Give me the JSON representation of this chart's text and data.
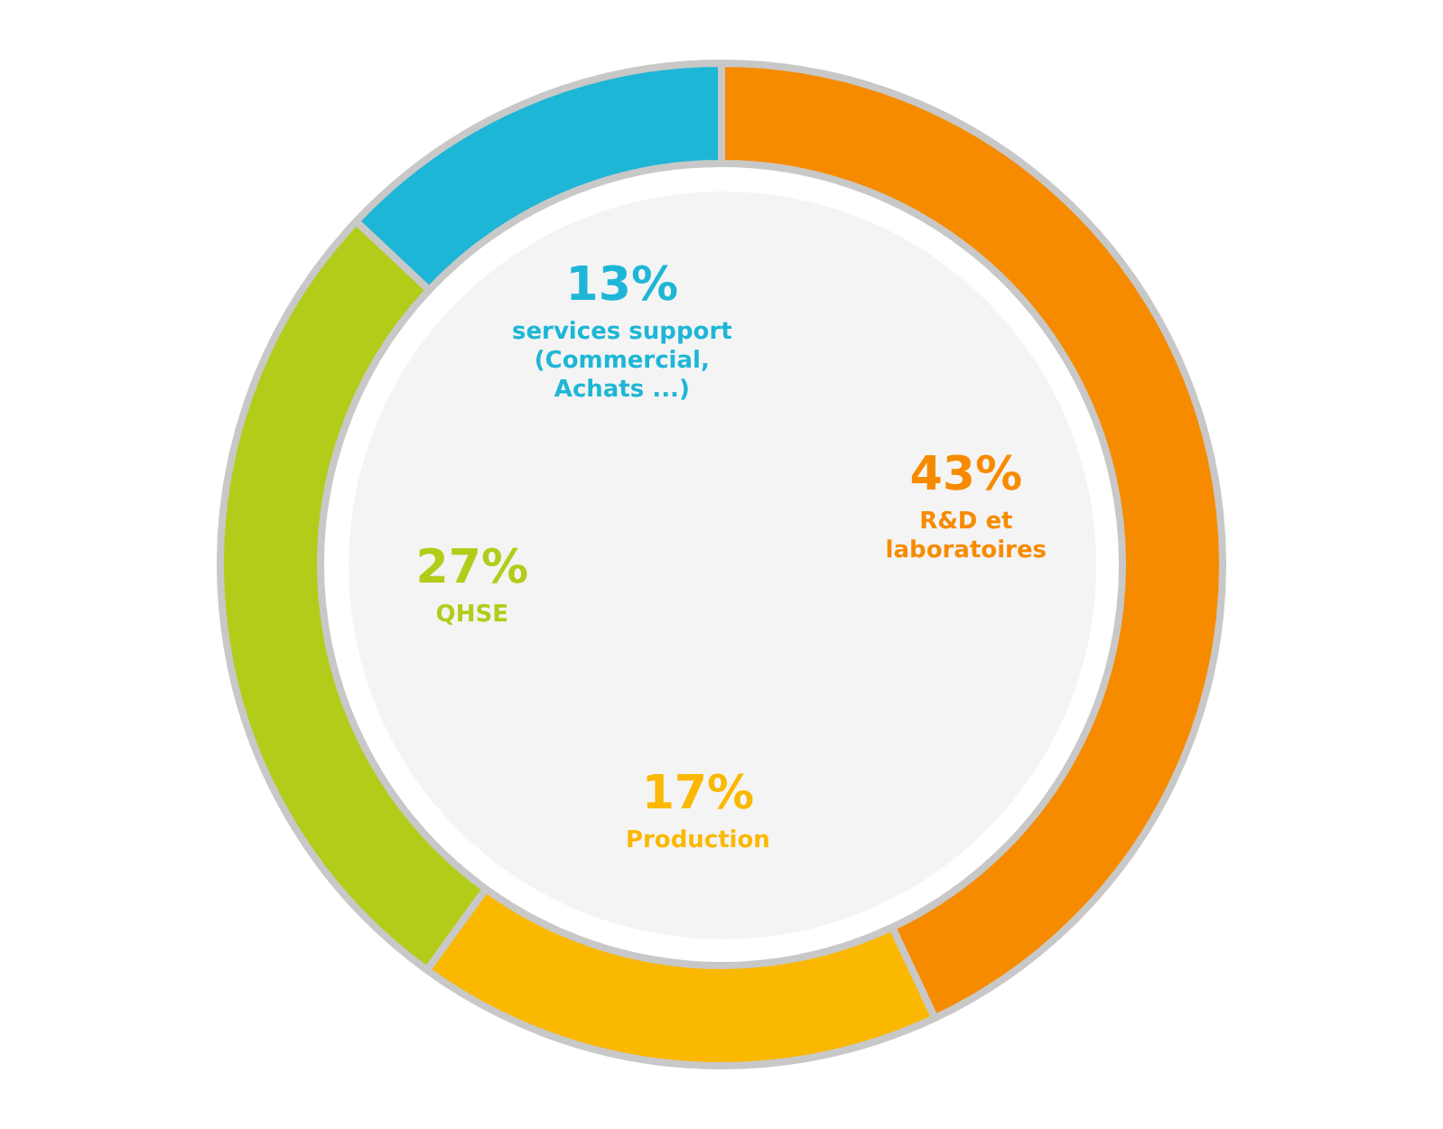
{
  "chart_data": {
    "type": "donut",
    "categories": [
      "R&D et laboratoires",
      "Production",
      "QHSE",
      "services support (Commercial, Achats ...)"
    ],
    "values": [
      43,
      17,
      27,
      13
    ],
    "value_labels": [
      "43%",
      "17%",
      "27%",
      "13%"
    ],
    "colors": [
      "#f78b00",
      "#fbb800",
      "#b3cc1a",
      "#1eb6d6"
    ],
    "legend": false
  }
}
